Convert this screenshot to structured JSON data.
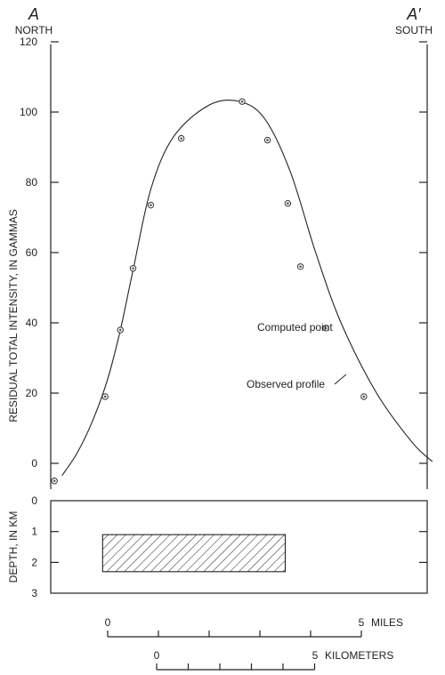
{
  "chart_data": [
    {
      "type": "line+scatter",
      "section_left": {
        "letter": "A",
        "direction": "NORTH"
      },
      "section_right": {
        "letter": "A′",
        "direction": "SOUTH"
      },
      "ylabel": "RESIDUAL TOTAL INTENSITY, IN GAMMAS",
      "ylim": [
        -5,
        120
      ],
      "yticks": [
        0,
        20,
        40,
        60,
        80,
        100,
        120
      ],
      "x_units": "miles",
      "xlim": [
        -1.15,
        6.4
      ],
      "series": [
        {
          "name": "Observed profile",
          "style": "line",
          "x": [
            -0.9,
            -0.6,
            -0.3,
            0.0,
            0.25,
            0.5,
            0.85,
            1.3,
            2.0,
            2.6,
            3.1,
            3.6,
            4.1,
            4.6,
            5.3,
            6.0,
            6.4
          ],
          "y": [
            -3.5,
            3,
            12,
            24,
            38,
            55,
            78,
            93,
            102,
            103,
            98,
            83,
            60,
            40,
            20,
            6,
            0.5
          ]
        },
        {
          "name": "Computed point",
          "style": "scatter",
          "x": [
            -1.05,
            -0.05,
            0.25,
            0.5,
            0.85,
            1.45,
            2.65,
            3.15,
            3.55,
            3.8,
            4.3,
            5.05
          ],
          "y": [
            -5,
            19,
            38,
            55.5,
            73.5,
            92.5,
            103,
            92,
            74,
            56,
            38.5,
            19
          ]
        }
      ],
      "annotations": [
        {
          "text": "Computed point",
          "target": "Computed point"
        },
        {
          "text": "Observed profile",
          "target": "Observed profile"
        }
      ]
    },
    {
      "type": "cross-section",
      "ylabel": "DEPTH, IN KM",
      "ylim": [
        3,
        0
      ],
      "yticks": [
        0,
        1,
        2,
        3
      ],
      "body": {
        "x": [
          -0.1,
          3.5
        ],
        "top": 1.1,
        "bottom": 2.3,
        "fill": "diagonal hatch"
      }
    }
  ],
  "scales": {
    "miles": {
      "min": 0,
      "max": 5,
      "start_label": "0",
      "end_label": "5",
      "unit": "MILES"
    },
    "kilometers": {
      "min": 0,
      "max": 5,
      "start_label": "0",
      "end_label": "5",
      "unit": "KILOMETERS"
    }
  }
}
